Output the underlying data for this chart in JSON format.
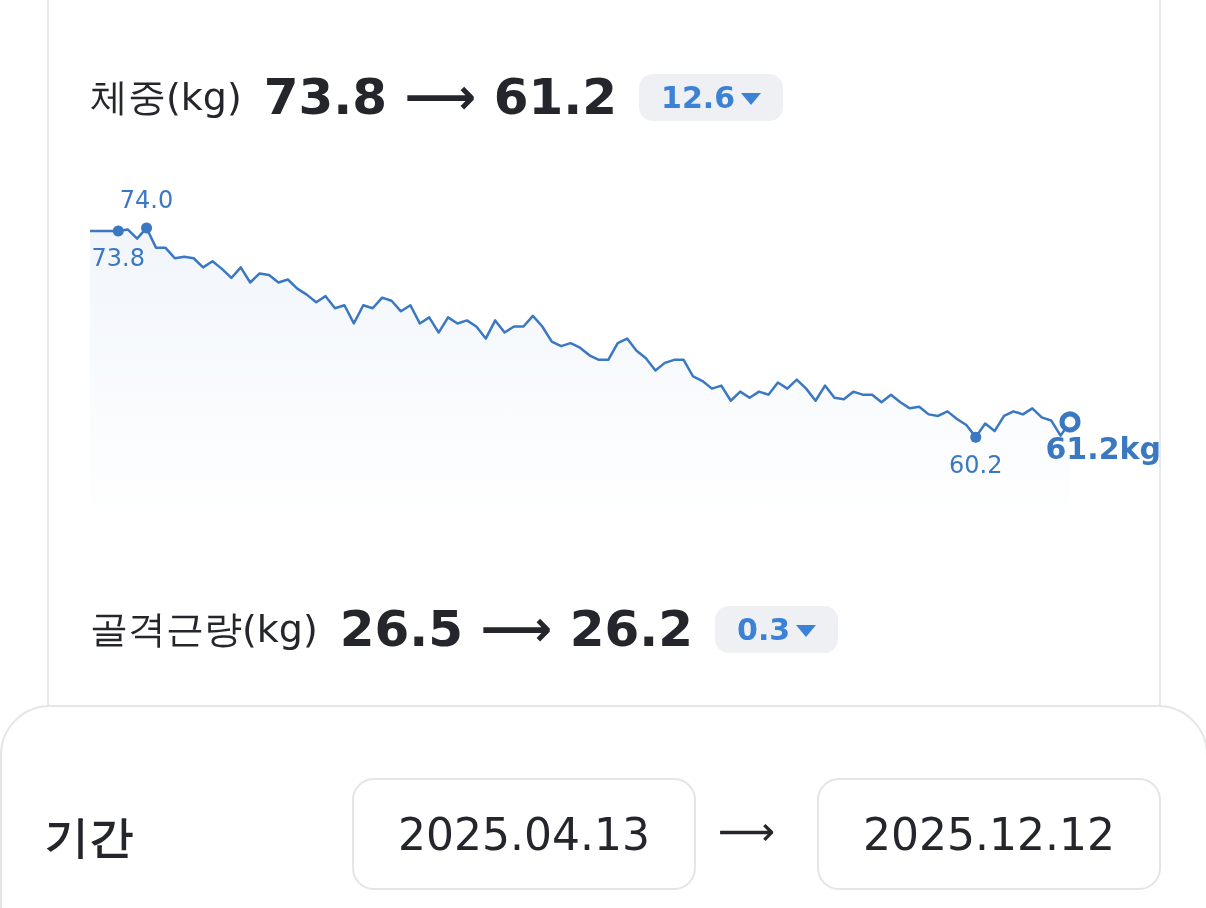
{
  "chart_data": {
    "type": "area",
    "title": "체중(kg)",
    "annotations": [
      "73.8 ⟶ 61.2",
      "12.6",
      "골격근량(kg)",
      "26.5 ⟶ 26.2",
      "0.3",
      "기간",
      "2025.04.13",
      "⟶",
      "2025.12.12"
    ],
    "categories": [
      null,
      null,
      null,
      null,
      null,
      null,
      null,
      null,
      null,
      null,
      null,
      null,
      null,
      null,
      null,
      null,
      null,
      null,
      null,
      null,
      null,
      null,
      null,
      null,
      null,
      null,
      null,
      null,
      null,
      null,
      null,
      null,
      null,
      null,
      null,
      null,
      null,
      null,
      null,
      null,
      null,
      null,
      null,
      null,
      null,
      null,
      null,
      null,
      null,
      null,
      null,
      null,
      null,
      null,
      null,
      null,
      null,
      null,
      null,
      null,
      null,
      null,
      null,
      null,
      null,
      null,
      null,
      null,
      null,
      null,
      null,
      null,
      null,
      null,
      null,
      null,
      null,
      null,
      null,
      null,
      null,
      null,
      null,
      null,
      null,
      null,
      null,
      null,
      null,
      null,
      null,
      null,
      null,
      null,
      null,
      null,
      null,
      null,
      null,
      null,
      null,
      null,
      null,
      null,
      null
    ],
    "series": [
      {
        "color": "#3b78c2",
        "values": [
          73.8,
          73.8,
          73.8,
          73.8,
          73.9,
          73.3,
          74.0,
          72.7,
          72.7,
          72.0,
          72.1,
          72.0,
          71.4,
          71.8,
          71.3,
          70.7,
          71.4,
          70.4,
          71.0,
          70.9,
          70.4,
          70.6,
          70.0,
          69.6,
          69.1,
          69.5,
          68.7,
          68.9,
          67.7,
          68.9,
          68.7,
          69.4,
          69.2,
          68.5,
          68.9,
          67.7,
          68.1,
          67.1,
          68.1,
          67.7,
          67.9,
          67.5,
          66.7,
          67.9,
          67.1,
          67.5,
          67.5,
          68.2,
          67.5,
          66.5,
          66.2,
          66.4,
          66.1,
          65.6,
          65.3,
          65.3,
          66.4,
          66.7,
          65.9,
          65.4,
          64.6,
          65.1,
          65.3,
          65.3,
          64.2,
          63.9,
          63.4,
          63.6,
          62.6,
          63.2,
          62.8,
          63.2,
          63.0,
          63.8,
          63.4,
          64.0,
          63.4,
          62.6,
          63.6,
          62.8,
          62.7,
          63.2,
          63.0,
          63.0,
          62.5,
          63.0,
          62.5,
          62.1,
          62.2,
          61.7,
          61.6,
          61.9,
          61.4,
          61.0,
          60.2,
          61.1,
          60.6,
          61.6,
          61.9,
          61.7,
          62.1,
          61.5,
          61.3,
          60.3,
          61.2
        ],
        "value_labels": [
          null,
          null,
          null,
          "73.8",
          null,
          null,
          "74.0",
          null,
          null,
          null,
          null,
          null,
          null,
          null,
          null,
          null,
          null,
          null,
          null,
          null,
          null,
          null,
          null,
          null,
          null,
          null,
          null,
          null,
          null,
          null,
          null,
          null,
          null,
          null,
          null,
          null,
          null,
          null,
          null,
          null,
          null,
          null,
          null,
          null,
          null,
          null,
          null,
          null,
          null,
          null,
          null,
          null,
          null,
          null,
          null,
          null,
          null,
          null,
          null,
          null,
          null,
          null,
          null,
          null,
          null,
          null,
          null,
          null,
          null,
          null,
          null,
          null,
          null,
          null,
          null,
          null,
          null,
          null,
          null,
          null,
          null,
          null,
          null,
          null,
          null,
          null,
          null,
          null,
          null,
          null,
          null,
          null,
          null,
          null,
          "60.2",
          null,
          null,
          null,
          null,
          null,
          null,
          null,
          null,
          null,
          "61.2kg"
        ]
      }
    ],
    "grid": false
  }
}
